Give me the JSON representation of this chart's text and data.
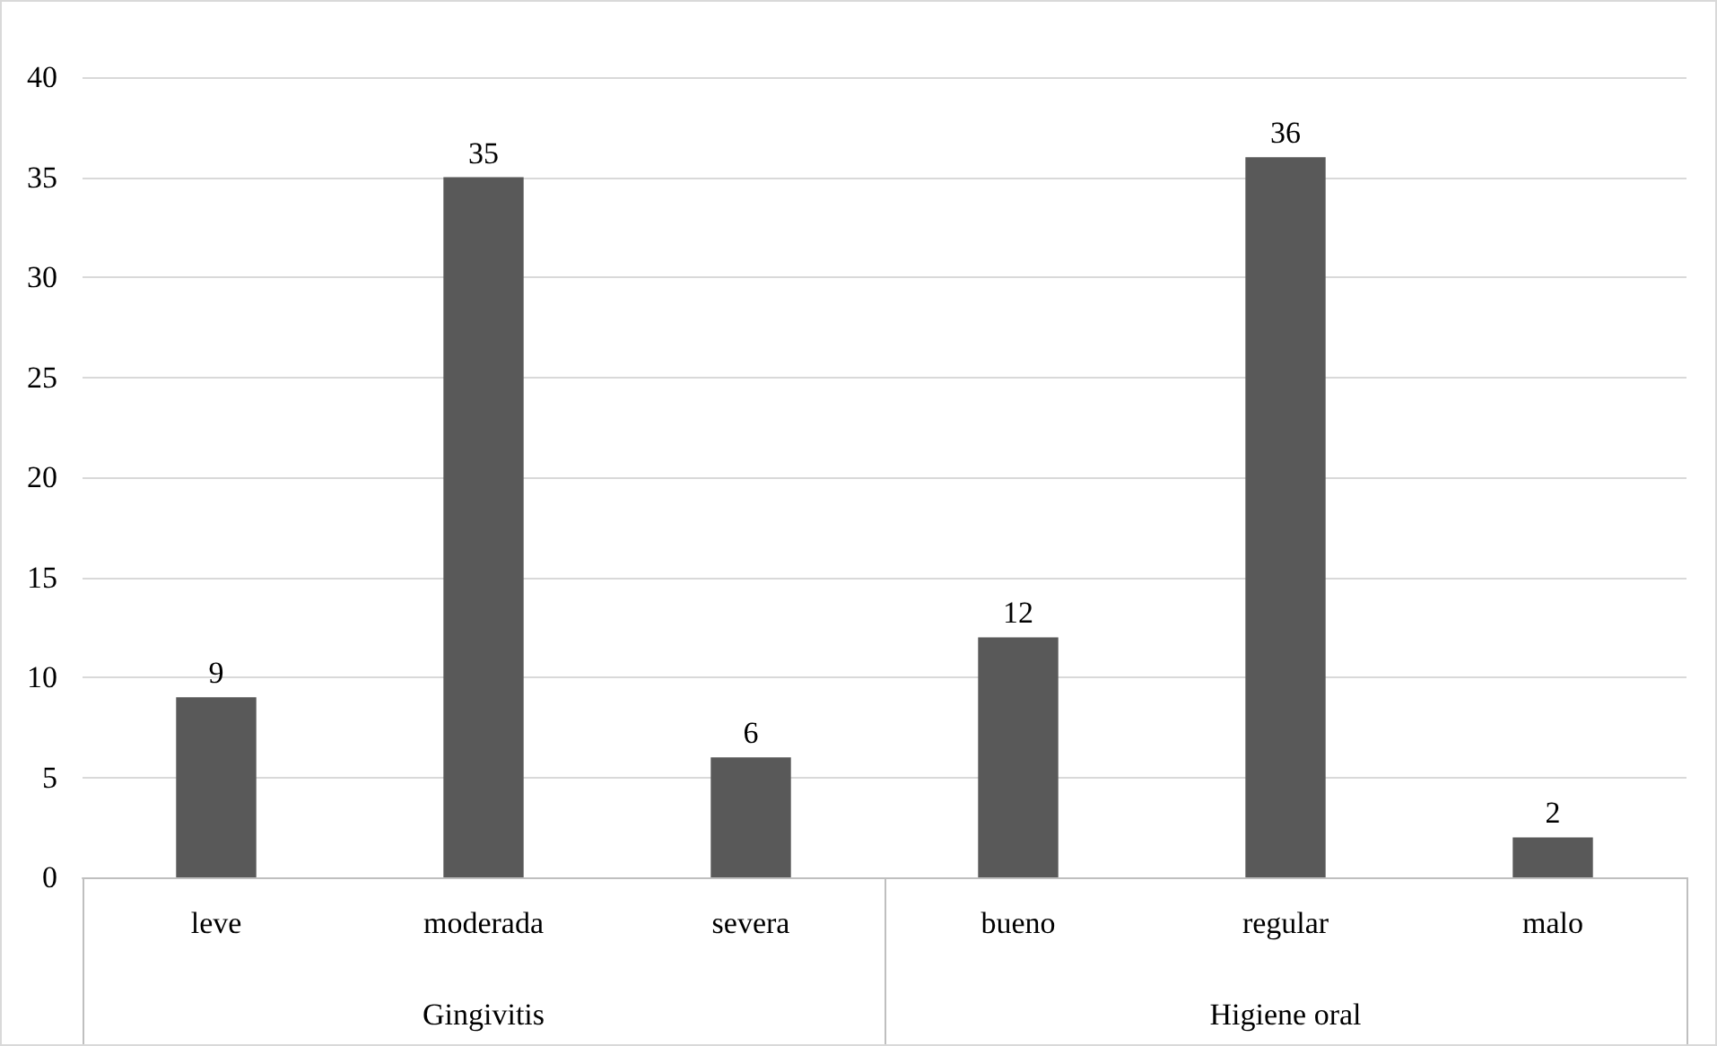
{
  "chart_data": {
    "type": "bar",
    "categories": [
      "leve",
      "moderada",
      "severa",
      "bueno",
      "regular",
      "malo"
    ],
    "values": [
      9,
      35,
      6,
      12,
      36,
      2
    ],
    "color": "#595959",
    "ylim": [
      0,
      40
    ],
    "yticks": [
      0,
      5,
      10,
      15,
      20,
      25,
      30,
      35,
      40
    ],
    "grid": "y",
    "data_labels": true,
    "annotations": [
      "Gingivitis",
      "Higiene oral"
    ]
  }
}
